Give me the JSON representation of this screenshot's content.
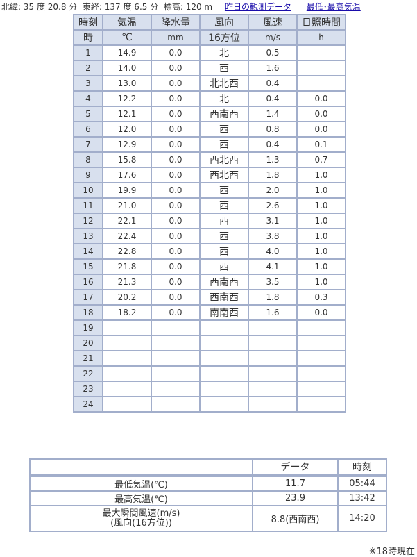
{
  "info": {
    "text": "北緯: 35 度 20.8 分  東経: 137 度 6.5 分  標高: 120 m",
    "link_yesterday": "昨日の観測データ",
    "link_minmax": "最低･最高気温"
  },
  "main_table": {
    "headers": [
      "時刻",
      "気温",
      "降水量",
      "風向",
      "風速",
      "日照時間"
    ],
    "units": [
      "時",
      "℃",
      "mm",
      "16方位",
      "m/s",
      "h"
    ],
    "rows": [
      [
        "1",
        "14.9",
        "0.0",
        "北",
        "0.5",
        ""
      ],
      [
        "2",
        "14.0",
        "0.0",
        "西",
        "1.6",
        ""
      ],
      [
        "3",
        "13.0",
        "0.0",
        "北北西",
        "0.4",
        ""
      ],
      [
        "4",
        "12.2",
        "0.0",
        "北",
        "0.4",
        "0.0"
      ],
      [
        "5",
        "12.1",
        "0.0",
        "西南西",
        "1.4",
        "0.0"
      ],
      [
        "6",
        "12.0",
        "0.0",
        "西",
        "0.8",
        "0.0"
      ],
      [
        "7",
        "12.9",
        "0.0",
        "西",
        "0.4",
        "0.1"
      ],
      [
        "8",
        "15.8",
        "0.0",
        "西北西",
        "1.3",
        "0.7"
      ],
      [
        "9",
        "17.6",
        "0.0",
        "西北西",
        "1.8",
        "1.0"
      ],
      [
        "10",
        "19.9",
        "0.0",
        "西",
        "2.0",
        "1.0"
      ],
      [
        "11",
        "21.0",
        "0.0",
        "西",
        "2.6",
        "1.0"
      ],
      [
        "12",
        "22.1",
        "0.0",
        "西",
        "3.1",
        "1.0"
      ],
      [
        "13",
        "22.4",
        "0.0",
        "西",
        "3.8",
        "1.0"
      ],
      [
        "14",
        "22.8",
        "0.0",
        "西",
        "4.0",
        "1.0"
      ],
      [
        "15",
        "21.8",
        "0.0",
        "西",
        "4.1",
        "1.0"
      ],
      [
        "16",
        "21.3",
        "0.0",
        "西南西",
        "3.5",
        "1.0"
      ],
      [
        "17",
        "20.2",
        "0.0",
        "西南西",
        "1.8",
        "0.3"
      ],
      [
        "18",
        "18.2",
        "0.0",
        "南南西",
        "1.6",
        "0.0"
      ],
      [
        "19",
        "",
        "",
        "",
        "",
        ""
      ],
      [
        "20",
        "",
        "",
        "",
        "",
        ""
      ],
      [
        "21",
        "",
        "",
        "",
        "",
        ""
      ],
      [
        "22",
        "",
        "",
        "",
        "",
        ""
      ],
      [
        "23",
        "",
        "",
        "",
        "",
        ""
      ],
      [
        "24",
        "",
        "",
        "",
        "",
        ""
      ]
    ]
  },
  "summary": {
    "headers": [
      "",
      "データ",
      "時刻"
    ],
    "rows": [
      {
        "label": "最低気温(℃)",
        "value": "11.7",
        "time": "05:44"
      },
      {
        "label": "最高気温(℃)",
        "value": "23.9",
        "time": "13:42"
      },
      {
        "label": "最大瞬間風速(m/s)",
        "label2": "(風向(16方位))",
        "value": "8.8(西南西)",
        "time": "14:20"
      }
    ]
  },
  "note": "※18時現在"
}
